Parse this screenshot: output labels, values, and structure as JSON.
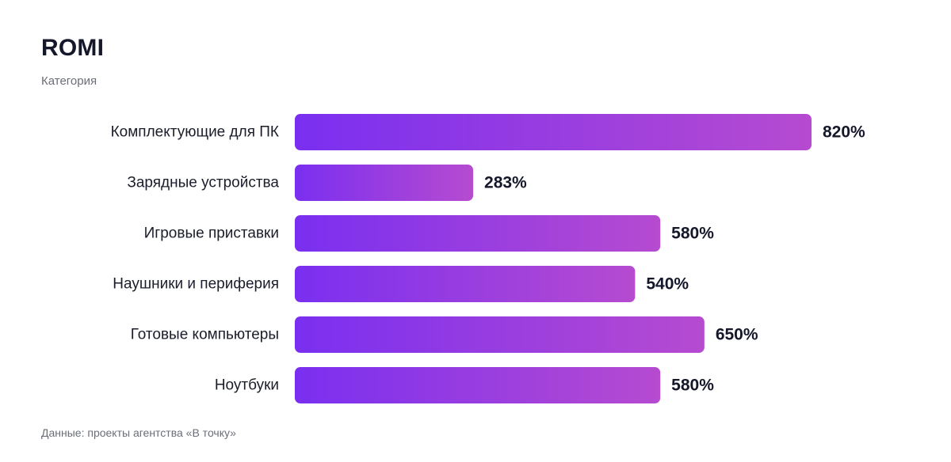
{
  "header": {
    "title": "ROMI",
    "subtitle": "Категория"
  },
  "footer": {
    "source": "Данные: проекты агентства «В точку»"
  },
  "colors": {
    "bar_start": "#7a2ff0",
    "bar_end": "#b64bd0"
  },
  "chart_data": {
    "type": "bar",
    "orientation": "horizontal",
    "title": "ROMI",
    "subtitle": "Категория",
    "categories": [
      "Комплектующие для ПК",
      "Зарядные устройства",
      "Игровые приставки",
      "Наушники и периферия",
      "Готовые компьютеры",
      "Ноутбуки"
    ],
    "values": [
      820,
      283,
      580,
      540,
      650,
      580
    ],
    "value_labels": [
      "820%",
      "283%",
      "580%",
      "540%",
      "650%",
      "580%"
    ],
    "unit": "%",
    "xlim": [
      0,
      820
    ],
    "grid": false,
    "legend": "none"
  }
}
